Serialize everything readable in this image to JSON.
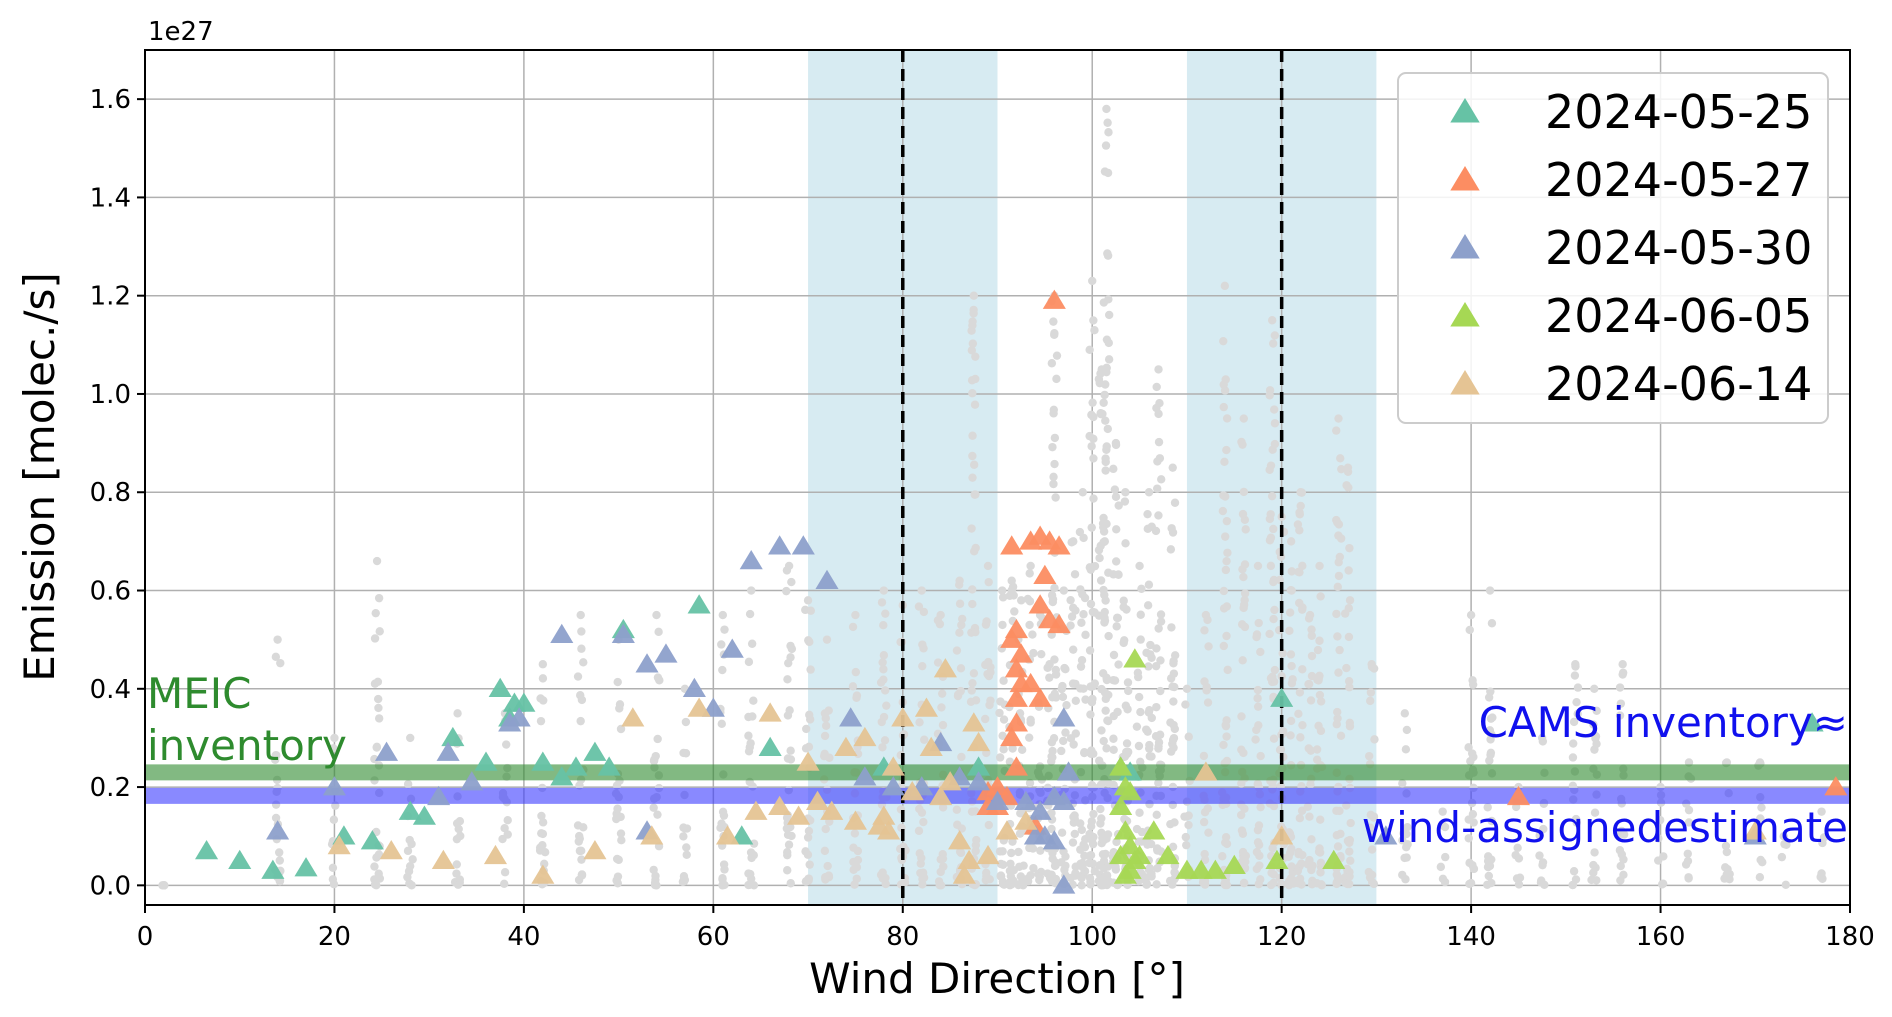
{
  "chart_data": {
    "type": "scatter",
    "xlabel": "Wind Direction [°]",
    "ylabel": "Emission [molec./s]",
    "y_offset_label": "1e27",
    "xlim": [
      0,
      180
    ],
    "ylim": [
      -0.04,
      1.7
    ],
    "x_ticks": [
      0,
      20,
      40,
      60,
      80,
      100,
      120,
      140,
      160,
      180
    ],
    "x_tick_labels": [
      "0",
      "20",
      "40",
      "60",
      "80",
      "100",
      "120",
      "140",
      "160",
      "180"
    ],
    "y_ticks": [
      0.0,
      0.2,
      0.4,
      0.6,
      0.8,
      1.0,
      1.2,
      1.4,
      1.6
    ],
    "y_tick_labels": [
      "0.0",
      "0.2",
      "0.4",
      "0.6",
      "0.8",
      "1.0",
      "1.2",
      "1.4",
      "1.6"
    ],
    "grid": true,
    "legend_position": "top-right",
    "shaded_ranges": [
      [
        70,
        90
      ],
      [
        110,
        130
      ]
    ],
    "shade_color": "#d7ebf2",
    "dashed_lines": [
      80,
      120
    ],
    "reference_lines": [
      {
        "label": "MEIC inventory",
        "label_lines": [
          "MEIC",
          "inventory"
        ],
        "value": 0.23,
        "color": "#2e8b2e"
      },
      {
        "label": "CAMS inventory≈",
        "value": 0.182,
        "color": "#3a3aff"
      }
    ],
    "annotations": {
      "meic": [
        "MEIC",
        "inventory"
      ],
      "cams": "CAMS inventory≈",
      "wind": "wind-assignedestimate"
    },
    "background_color": "#d9d9d9",
    "background_points": {
      "columns": [
        [
          2,
          0.0,
          0.0
        ],
        [
          14,
          0.0,
          0.5
        ],
        [
          20,
          0.0,
          0.3
        ],
        [
          24.5,
          0.0,
          0.66
        ],
        [
          28,
          0.0,
          0.3
        ],
        [
          33,
          0.0,
          0.35
        ],
        [
          38,
          0.0,
          0.35
        ],
        [
          42,
          0.0,
          0.45
        ],
        [
          46,
          0.0,
          0.55
        ],
        [
          50,
          0.0,
          0.5
        ],
        [
          54,
          0.0,
          0.55
        ],
        [
          57,
          0.0,
          0.4
        ],
        [
          61,
          0.0,
          0.55
        ],
        [
          64,
          0.0,
          0.6
        ],
        [
          68,
          0.0,
          0.65
        ],
        [
          70,
          0.0,
          0.58
        ],
        [
          72,
          0.0,
          0.5
        ],
        [
          75,
          0.0,
          0.55
        ],
        [
          78,
          0.0,
          0.6
        ],
        [
          80,
          0.0,
          0.57
        ],
        [
          82,
          0.0,
          0.6
        ],
        [
          84,
          0.0,
          0.55
        ],
        [
          86,
          0.0,
          0.62
        ],
        [
          87.5,
          0.0,
          1.2
        ],
        [
          89,
          0.0,
          0.65
        ],
        [
          90.5,
          0.0,
          0.6
        ],
        [
          91.5,
          0.0,
          0.62
        ],
        [
          92.5,
          0.0,
          0.58
        ],
        [
          93.5,
          0.0,
          0.65
        ],
        [
          94.5,
          0.0,
          0.55
        ],
        [
          95.5,
          0.0,
          0.45
        ],
        [
          96,
          0.0,
          1.2
        ],
        [
          97,
          0.0,
          0.6
        ],
        [
          98,
          0.0,
          0.7
        ],
        [
          99,
          0.0,
          0.8
        ],
        [
          100,
          0.0,
          1.23
        ],
        [
          101,
          0.0,
          1.05
        ],
        [
          101.5,
          0.0,
          1.58
        ],
        [
          102.5,
          0.0,
          0.9
        ],
        [
          103.5,
          0.0,
          0.8
        ],
        [
          105,
          0.0,
          0.65
        ],
        [
          106,
          0.0,
          0.8
        ],
        [
          107,
          0.0,
          1.05
        ],
        [
          108.5,
          0.0,
          0.85
        ],
        [
          110,
          0.0,
          0.4
        ],
        [
          112,
          0.0,
          0.55
        ],
        [
          114,
          0.0,
          1.22
        ],
        [
          116,
          0.0,
          0.95
        ],
        [
          117.5,
          0.0,
          0.65
        ],
        [
          119,
          0.0,
          1.15
        ],
        [
          120,
          0.0,
          0.75
        ],
        [
          121,
          0.0,
          0.7
        ],
        [
          122,
          0.0,
          0.8
        ],
        [
          123,
          0.0,
          0.55
        ],
        [
          124,
          0.0,
          0.65
        ],
        [
          126,
          0.0,
          0.95
        ],
        [
          127,
          0.0,
          0.85
        ],
        [
          129.5,
          0.0,
          0.45
        ],
        [
          133,
          0.0,
          0.35
        ],
        [
          137,
          0.0,
          0.15
        ],
        [
          140,
          0.0,
          0.55
        ],
        [
          142,
          0.0,
          0.6
        ],
        [
          145,
          0.0,
          0.2
        ],
        [
          147.5,
          0.0,
          0.3
        ],
        [
          151,
          0.0,
          0.45
        ],
        [
          153,
          0.0,
          0.4
        ],
        [
          156,
          0.0,
          0.45
        ],
        [
          160,
          0.0,
          0.2
        ],
        [
          163,
          0.0,
          0.25
        ],
        [
          167,
          0.0,
          0.25
        ],
        [
          170.5,
          0.0,
          0.25
        ],
        [
          173,
          0.0,
          0.1
        ],
        [
          177,
          0.0,
          0.15
        ]
      ]
    },
    "series": [
      {
        "name": "2024-05-25",
        "color": "#66c2a5",
        "points": [
          [
            6.5,
            0.07
          ],
          [
            10,
            0.05
          ],
          [
            13.5,
            0.03
          ],
          [
            17,
            0.035
          ],
          [
            21,
            0.1
          ],
          [
            24,
            0.09
          ],
          [
            28,
            0.15
          ],
          [
            29.5,
            0.14
          ],
          [
            32.5,
            0.3
          ],
          [
            36,
            0.25
          ],
          [
            37.5,
            0.4
          ],
          [
            39,
            0.37
          ],
          [
            40,
            0.37
          ],
          [
            38.5,
            0.34
          ],
          [
            42,
            0.25
          ],
          [
            44,
            0.22
          ],
          [
            45.5,
            0.24
          ],
          [
            47.5,
            0.27
          ],
          [
            49,
            0.24
          ],
          [
            50.5,
            0.52
          ],
          [
            58.5,
            0.57
          ],
          [
            63,
            0.1
          ],
          [
            66,
            0.28
          ],
          [
            78,
            0.24
          ],
          [
            88,
            0.24
          ],
          [
            103,
            0.24
          ],
          [
            104,
            0.23
          ],
          [
            120,
            0.38
          ],
          [
            176,
            0.33
          ]
        ]
      },
      {
        "name": "2024-05-27",
        "color": "#fc8d62",
        "points": [
          [
            91.5,
            0.69
          ],
          [
            93.5,
            0.7
          ],
          [
            94.5,
            0.71
          ],
          [
            95.5,
            0.7
          ],
          [
            96.5,
            0.69
          ],
          [
            95,
            0.63
          ],
          [
            94.5,
            0.57
          ],
          [
            95.5,
            0.54
          ],
          [
            96.5,
            0.53
          ],
          [
            92,
            0.52
          ],
          [
            91.5,
            0.5
          ],
          [
            92.5,
            0.47
          ],
          [
            92,
            0.44
          ],
          [
            92.5,
            0.41
          ],
          [
            93.5,
            0.41
          ],
          [
            92,
            0.38
          ],
          [
            94.5,
            0.38
          ],
          [
            92,
            0.33
          ],
          [
            91.5,
            0.3
          ],
          [
            92,
            0.24
          ],
          [
            91,
            0.18
          ],
          [
            89,
            0.19
          ],
          [
            90,
            0.16
          ],
          [
            94,
            0.12
          ],
          [
            96,
            1.19
          ],
          [
            145,
            0.18
          ],
          [
            178.5,
            0.2
          ],
          [
            90,
            0.2
          ],
          [
            89,
            0.16
          ]
        ]
      },
      {
        "name": "2024-05-30",
        "color": "#8da0cb",
        "points": [
          [
            14,
            0.11
          ],
          [
            20,
            0.2
          ],
          [
            25.5,
            0.27
          ],
          [
            31,
            0.18
          ],
          [
            32,
            0.27
          ],
          [
            34.5,
            0.21
          ],
          [
            38.5,
            0.33
          ],
          [
            39.5,
            0.34
          ],
          [
            44,
            0.51
          ],
          [
            50.5,
            0.51
          ],
          [
            53,
            0.45
          ],
          [
            55,
            0.47
          ],
          [
            58,
            0.4
          ],
          [
            60,
            0.36
          ],
          [
            62,
            0.48
          ],
          [
            64,
            0.66
          ],
          [
            67,
            0.69
          ],
          [
            69.5,
            0.69
          ],
          [
            72,
            0.62
          ],
          [
            74.5,
            0.34
          ],
          [
            76,
            0.22
          ],
          [
            79,
            0.2
          ],
          [
            82,
            0.2
          ],
          [
            84,
            0.29
          ],
          [
            86,
            0.22
          ],
          [
            88,
            0.21
          ],
          [
            90,
            0.17
          ],
          [
            93,
            0.17
          ],
          [
            94.5,
            0.15
          ],
          [
            96,
            0.18
          ],
          [
            97,
            0.17
          ],
          [
            97.5,
            0.23
          ],
          [
            97,
            0.34
          ],
          [
            95,
            0.1
          ],
          [
            96,
            0.09
          ],
          [
            94,
            0.1
          ],
          [
            97,
            0.0
          ],
          [
            53,
            0.11
          ],
          [
            131,
            0.1
          ],
          [
            170,
            0.1
          ]
        ]
      },
      {
        "name": "2024-06-05",
        "color": "#a6d854",
        "points": [
          [
            103,
            0.24
          ],
          [
            103.5,
            0.2
          ],
          [
            104,
            0.19
          ],
          [
            103,
            0.16
          ],
          [
            103.5,
            0.11
          ],
          [
            104,
            0.08
          ],
          [
            103,
            0.06
          ],
          [
            104.5,
            0.05
          ],
          [
            103.5,
            0.02
          ],
          [
            104,
            0.03
          ],
          [
            105,
            0.06
          ],
          [
            106.5,
            0.11
          ],
          [
            108,
            0.06
          ],
          [
            104.5,
            0.46
          ],
          [
            110,
            0.03
          ],
          [
            111.5,
            0.03
          ],
          [
            113,
            0.03
          ],
          [
            119.5,
            0.05
          ],
          [
            125.5,
            0.05
          ],
          [
            115,
            0.04
          ]
        ]
      },
      {
        "name": "2024-06-14",
        "color": "#e5c494",
        "points": [
          [
            20.5,
            0.08
          ],
          [
            26,
            0.07
          ],
          [
            31.5,
            0.05
          ],
          [
            37,
            0.06
          ],
          [
            42,
            0.02
          ],
          [
            47.5,
            0.07
          ],
          [
            51.5,
            0.34
          ],
          [
            53.5,
            0.1
          ],
          [
            58.5,
            0.36
          ],
          [
            61.5,
            0.1
          ],
          [
            64.5,
            0.15
          ],
          [
            66,
            0.35
          ],
          [
            67,
            0.16
          ],
          [
            69,
            0.14
          ],
          [
            70,
            0.25
          ],
          [
            71,
            0.17
          ],
          [
            72.5,
            0.15
          ],
          [
            74,
            0.28
          ],
          [
            75,
            0.13
          ],
          [
            76,
            0.3
          ],
          [
            77.5,
            0.12
          ],
          [
            78.5,
            0.11
          ],
          [
            79,
            0.24
          ],
          [
            80,
            0.34
          ],
          [
            81,
            0.19
          ],
          [
            82.5,
            0.36
          ],
          [
            83,
            0.28
          ],
          [
            84.5,
            0.44
          ],
          [
            85,
            0.21
          ],
          [
            86,
            0.09
          ],
          [
            86.5,
            0.02
          ],
          [
            87,
            0.05
          ],
          [
            87.5,
            0.33
          ],
          [
            88,
            0.29
          ],
          [
            89,
            0.06
          ],
          [
            91,
            0.11
          ],
          [
            93,
            0.13
          ],
          [
            112,
            0.23
          ],
          [
            120,
            0.1
          ],
          [
            170,
            0.11
          ],
          [
            78,
            0.14
          ],
          [
            84,
            0.18
          ]
        ]
      }
    ]
  }
}
